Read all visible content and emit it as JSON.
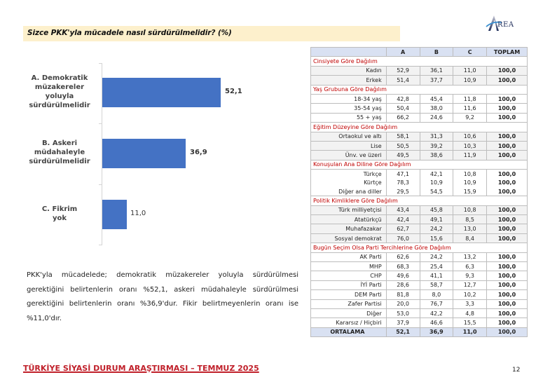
{
  "header": {
    "question": "Sizce PKK'yla mücadele nasıl sürdürülmelidir? (%)",
    "logo_text": "REA",
    "logo_icon": "area-logo-a-swoosh"
  },
  "chart_data": {
    "type": "bar",
    "orientation": "horizontal",
    "title": "Sizce PKK'yla mücadele nasıl sürdürülmelidir? (%)",
    "categories": [
      "A. Demokratik müzakereler yoluyla sürdürülmelidir",
      "B. Askeri müdahaleyle sürdürülmelidir",
      "C. Fikrim yok"
    ],
    "values": [
      52.1,
      36.9,
      11.0
    ],
    "value_labels": [
      "52,1",
      "36,9",
      "11,0"
    ],
    "xlabel": "",
    "ylabel": "",
    "xlim": [
      0,
      60
    ],
    "grid": false,
    "legend": "none",
    "bar_color": "#4472c4"
  },
  "chart": {
    "labels": [
      [
        "A. Demokratik",
        "müzakereler",
        "yoluyla",
        "sürdürülmelidir"
      ],
      [
        "B. Askeri",
        "müdahaleyle",
        "sürdürülmelidir"
      ],
      [
        "C. Fikrim",
        "yok"
      ]
    ],
    "values": [
      "52,1",
      "36,9",
      "11,0"
    ]
  },
  "paragraph": "PKK'yla mücadelede; demokratik müzakereler yoluyla sürdürülmesi gerektiğini belirtenlerin oranı %52,1, askeri müdahaleyle sürdürülmesi gerektiğini belirtenlerin oranı %36,9'dur. Fikir belirtmeyenlerin oranı ise %11,0'dır.",
  "table": {
    "columns": [
      "",
      "A",
      "B",
      "C",
      "TOPLAM"
    ],
    "groups": [
      {
        "title": "Cinsiyete Göre Dağılım",
        "rows": [
          [
            "Kadın",
            "52,9",
            "36,1",
            "11,0",
            "100,0"
          ],
          [
            "Erkek",
            "51,4",
            "37,7",
            "10,9",
            "100,0"
          ]
        ]
      },
      {
        "title": "Yaş Grubuna Göre Dağılım",
        "rows": [
          [
            "18-34 yaş",
            "42,8",
            "45,4",
            "11,8",
            "100,0"
          ],
          [
            "35-54 yaş",
            "50,4",
            "38,0",
            "11,6",
            "100,0"
          ],
          [
            "55 + yaş",
            "66,2",
            "24,6",
            "9,2",
            "100,0"
          ]
        ]
      },
      {
        "title": "Eğitim Düzeyine Göre Dağılım",
        "rows": [
          [
            "Ortaokul ve altı",
            "58,1",
            "31,3",
            "10,6",
            "100,0"
          ],
          [
            "Lise",
            "50,5",
            "39,2",
            "10,3",
            "100,0"
          ],
          [
            "Ünv. ve üzeri",
            "49,5",
            "38,6",
            "11,9",
            "100,0"
          ]
        ]
      },
      {
        "title": "Konuşulan Ana Diline Göre Dağılım",
        "rows": [
          [
            "Türkçe",
            "47,1",
            "42,1",
            "10,8",
            "100,0"
          ],
          [
            "Kürtçe",
            "78,3",
            "10,9",
            "10,9",
            "100,0"
          ],
          [
            "Diğer ana diller",
            "29,5",
            "54,5",
            "15,9",
            "100,0"
          ]
        ]
      },
      {
        "title": "Politik Kimliklere Göre Dağılım",
        "rows": [
          [
            "Türk milliyetçisi",
            "43,4",
            "45,8",
            "10,8",
            "100,0"
          ],
          [
            "Atatürkçü",
            "42,4",
            "49,1",
            "8,5",
            "100,0"
          ],
          [
            "Muhafazakar",
            "62,7",
            "24,2",
            "13,0",
            "100,0"
          ],
          [
            "Sosyal demokrat",
            "76,0",
            "15,6",
            "8,4",
            "100,0"
          ]
        ]
      },
      {
        "title": "Bugün Seçim Olsa Parti Tercihlerine Göre Dağılım",
        "rows": [
          [
            "AK Parti",
            "62,6",
            "24,2",
            "13,2",
            "100,0"
          ],
          [
            "MHP",
            "68,3",
            "25,4",
            "6,3",
            "100,0"
          ],
          [
            "CHP",
            "49,6",
            "41,1",
            "9,3",
            "100,0"
          ],
          [
            "İYİ Parti",
            "28,6",
            "58,7",
            "12,7",
            "100,0"
          ],
          [
            "DEM Parti",
            "81,8",
            "8,0",
            "10,2",
            "100,0"
          ],
          [
            "Zafer Partisi",
            "20,0",
            "76,7",
            "3,3",
            "100,0"
          ],
          [
            "Diğer",
            "53,0",
            "42,2",
            "4,8",
            "100,0"
          ],
          [
            "Kararsız / Hiçbiri",
            "37,9",
            "46,6",
            "15,5",
            "100,0"
          ]
        ]
      }
    ],
    "average": [
      "ORTALAMA",
      "52,1",
      "36,9",
      "11,0",
      "100,0"
    ]
  },
  "footer": {
    "title": "TÜRKİYE SİYASİ DURUM ARAŞTIRMASI – TEMMUZ 2025",
    "page": "12"
  },
  "colors": {
    "title_bg": "#fdf0cc",
    "bar": "#4472c4",
    "header_bg": "#d9e1f2",
    "group_title": "#c00000",
    "footer": "#c0202a"
  }
}
